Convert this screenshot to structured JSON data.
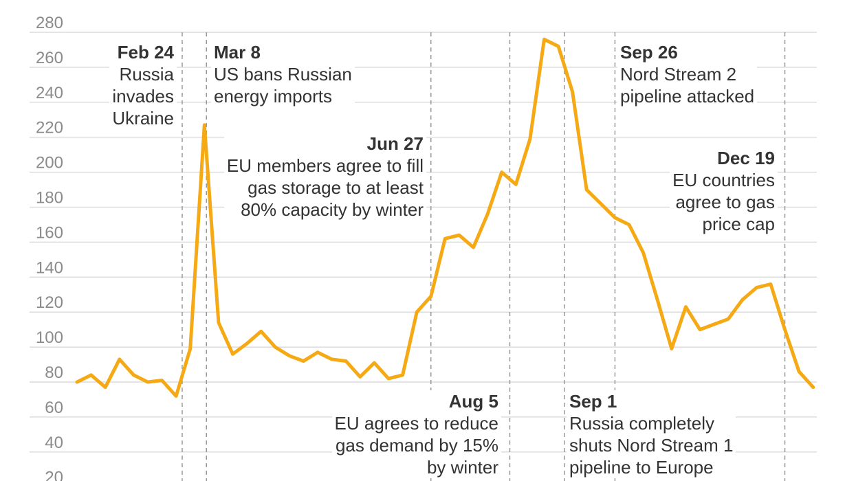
{
  "chart_data": {
    "type": "line",
    "title": "",
    "xlabel": "",
    "ylabel": "",
    "ylim": [
      20,
      280
    ],
    "yticks": [
      20,
      40,
      60,
      80,
      100,
      120,
      140,
      160,
      180,
      200,
      220,
      240,
      260,
      280
    ],
    "grid": true,
    "line_color": "#F5A915",
    "frequency": "weekly",
    "values": [
      80,
      84,
      77,
      93,
      84,
      80,
      81,
      72,
      99,
      227,
      114,
      96,
      102,
      109,
      100,
      95,
      92,
      97,
      93,
      92,
      83,
      91,
      82,
      84,
      120,
      129,
      162,
      164,
      157,
      176,
      200,
      193,
      219,
      276,
      272,
      246,
      190,
      182,
      174,
      170,
      154,
      127,
      99,
      123,
      110,
      113,
      116,
      127,
      134,
      136,
      110,
      86,
      77
    ],
    "annotations": [
      {
        "date": "Feb 24",
        "lines": [
          "Russia",
          "invades",
          "Ukraine"
        ],
        "align": "right"
      },
      {
        "date": "Mar 8",
        "lines": [
          "US bans Russian",
          "energy imports"
        ],
        "align": "left"
      },
      {
        "date": "Jun 27",
        "lines": [
          "EU members agree to fill",
          "gas storage to at least",
          "80% capacity by winter"
        ],
        "align": "right"
      },
      {
        "date": "Aug 5",
        "lines": [
          "EU agrees to reduce",
          "gas demand by 15%",
          "by winter"
        ],
        "align": "right"
      },
      {
        "date": "Sep 1",
        "lines": [
          "Russia completely",
          "shuts Nord Stream 1",
          "pipeline to Europe"
        ],
        "align": "left"
      },
      {
        "date": "Sep 26",
        "lines": [
          "Nord Stream 2",
          "pipeline attacked"
        ],
        "align": "left"
      },
      {
        "date": "Dec 19",
        "lines": [
          "EU countries",
          "agree to gas",
          "price cap"
        ],
        "align": "right"
      }
    ]
  }
}
